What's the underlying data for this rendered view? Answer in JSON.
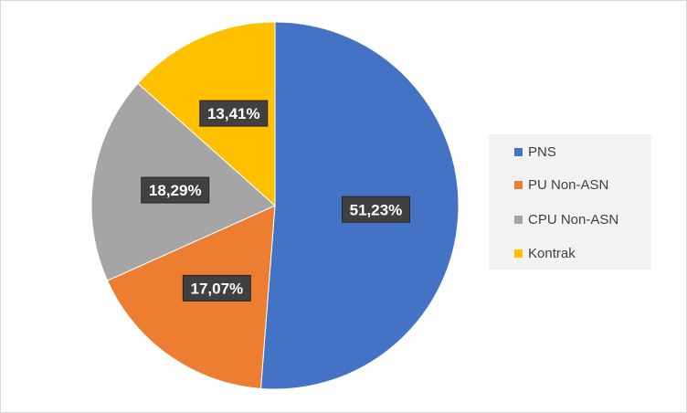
{
  "chart_data": {
    "type": "pie",
    "categories": [
      "PNS",
      "PU Non-ASN",
      "CPU Non-ASN",
      "Kontrak"
    ],
    "values": [
      51.23,
      17.07,
      18.29,
      13.41
    ],
    "data_labels": [
      "51,23%",
      "17,07%",
      "18,29%",
      "13,41%"
    ],
    "colors": [
      "#4472c4",
      "#ed7d31",
      "#a5a5a5",
      "#ffc000"
    ],
    "title": "",
    "legend_position": "right",
    "start_angle": "top, clockwise"
  }
}
